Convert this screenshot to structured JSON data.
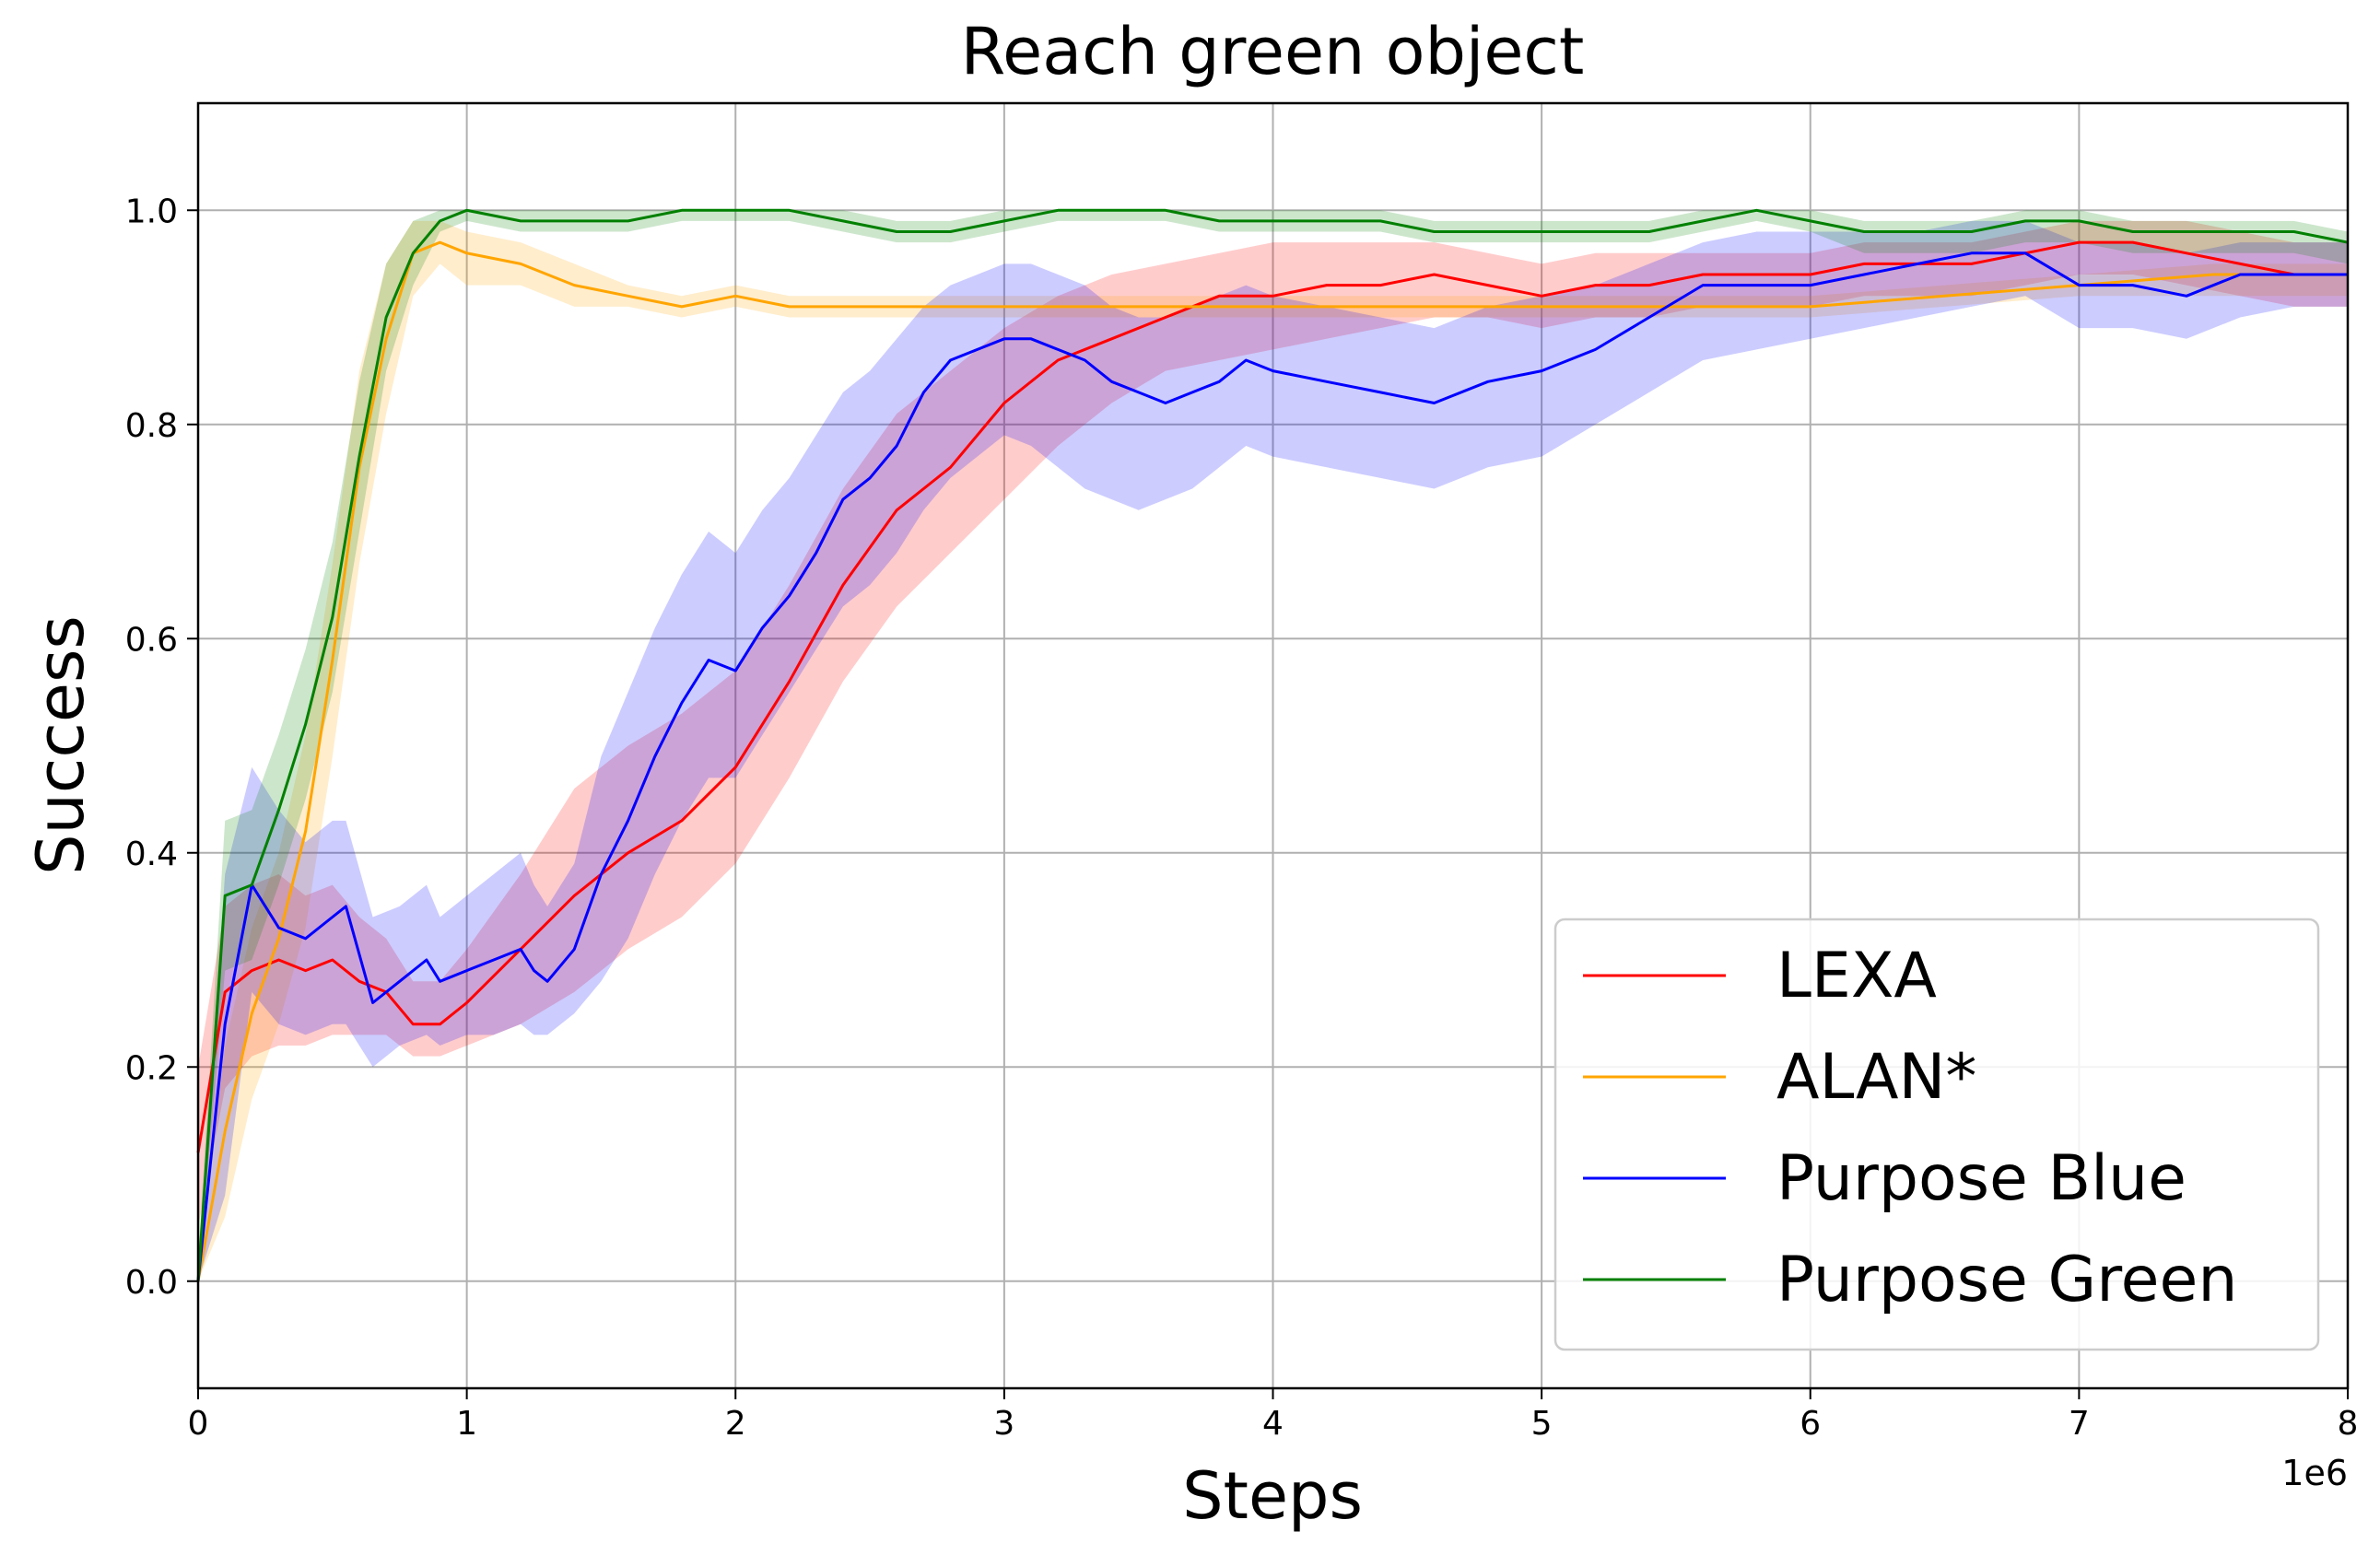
{
  "chart_data": {
    "type": "line",
    "title": "Reach green object",
    "xlabel": "Steps",
    "ylabel": "Success",
    "x_offset_label": "1e6",
    "xlim": [
      0,
      8
    ],
    "ylim": [
      -0.1,
      1.1
    ],
    "x_ticks": [
      0,
      1,
      2,
      3,
      4,
      5,
      6,
      7,
      8
    ],
    "x_tick_labels": [
      "0",
      "1",
      "2",
      "3",
      "4",
      "5",
      "6",
      "7",
      "8"
    ],
    "y_ticks": [
      0.0,
      0.2,
      0.4,
      0.6,
      0.8,
      1.0
    ],
    "y_tick_labels": [
      "0.0",
      "0.2",
      "0.4",
      "0.6",
      "0.8",
      "1.0"
    ],
    "grid": true,
    "legend_position": "lower-right",
    "series": [
      {
        "name": "LEXA",
        "color": "#ff0000",
        "x": [
          0,
          0.1,
          0.2,
          0.3,
          0.4,
          0.5,
          0.6,
          0.7,
          0.8,
          0.9,
          1.0,
          1.2,
          1.4,
          1.6,
          1.8,
          2.0,
          2.2,
          2.4,
          2.6,
          2.8,
          3.0,
          3.2,
          3.4,
          3.6,
          3.8,
          4.0,
          4.2,
          4.4,
          4.6,
          4.8,
          5.0,
          5.2,
          5.4,
          5.6,
          5.8,
          6.0,
          6.2,
          6.4,
          6.6,
          6.8,
          7.0,
          7.2,
          7.4,
          7.6,
          7.8,
          8.0
        ],
        "y": [
          0.12,
          0.27,
          0.29,
          0.3,
          0.29,
          0.3,
          0.28,
          0.27,
          0.24,
          0.24,
          0.26,
          0.31,
          0.36,
          0.4,
          0.43,
          0.48,
          0.56,
          0.65,
          0.72,
          0.76,
          0.82,
          0.86,
          0.88,
          0.9,
          0.92,
          0.92,
          0.93,
          0.93,
          0.94,
          0.93,
          0.92,
          0.93,
          0.93,
          0.94,
          0.94,
          0.94,
          0.95,
          0.95,
          0.95,
          0.96,
          0.97,
          0.97,
          0.96,
          0.95,
          0.94,
          0.94
        ],
        "lower": [
          0.05,
          0.18,
          0.21,
          0.22,
          0.22,
          0.23,
          0.23,
          0.23,
          0.21,
          0.21,
          0.22,
          0.24,
          0.27,
          0.31,
          0.34,
          0.39,
          0.47,
          0.56,
          0.63,
          0.68,
          0.73,
          0.78,
          0.82,
          0.85,
          0.86,
          0.87,
          0.88,
          0.89,
          0.9,
          0.9,
          0.89,
          0.9,
          0.9,
          0.91,
          0.91,
          0.91,
          0.92,
          0.92,
          0.92,
          0.93,
          0.94,
          0.94,
          0.93,
          0.92,
          0.91,
          0.91
        ],
        "upper": [
          0.2,
          0.35,
          0.37,
          0.38,
          0.36,
          0.37,
          0.34,
          0.32,
          0.28,
          0.28,
          0.31,
          0.38,
          0.46,
          0.5,
          0.53,
          0.57,
          0.65,
          0.74,
          0.81,
          0.85,
          0.89,
          0.92,
          0.94,
          0.95,
          0.96,
          0.97,
          0.97,
          0.97,
          0.97,
          0.96,
          0.95,
          0.96,
          0.96,
          0.96,
          0.96,
          0.96,
          0.97,
          0.97,
          0.97,
          0.98,
          0.99,
          0.99,
          0.99,
          0.98,
          0.97,
          0.97
        ]
      },
      {
        "name": "ALAN*",
        "color": "#ffa500",
        "x": [
          0,
          0.1,
          0.2,
          0.3,
          0.4,
          0.5,
          0.6,
          0.7,
          0.8,
          0.9,
          1.0,
          1.2,
          1.4,
          1.6,
          1.8,
          2.0,
          2.2,
          2.4,
          2.6,
          2.8,
          3.0,
          3.5,
          4.0,
          4.5,
          5.0,
          5.5,
          6.0,
          6.5,
          7.0,
          7.5,
          8.0
        ],
        "y": [
          0.0,
          0.14,
          0.25,
          0.32,
          0.42,
          0.58,
          0.76,
          0.88,
          0.96,
          0.97,
          0.96,
          0.95,
          0.93,
          0.92,
          0.91,
          0.92,
          0.91,
          0.91,
          0.91,
          0.91,
          0.91,
          0.91,
          0.91,
          0.91,
          0.91,
          0.91,
          0.91,
          0.92,
          0.93,
          0.94,
          0.94
        ],
        "lower": [
          0.0,
          0.06,
          0.17,
          0.24,
          0.33,
          0.49,
          0.67,
          0.81,
          0.92,
          0.95,
          0.93,
          0.93,
          0.91,
          0.91,
          0.9,
          0.91,
          0.9,
          0.9,
          0.9,
          0.9,
          0.9,
          0.9,
          0.9,
          0.9,
          0.9,
          0.9,
          0.9,
          0.91,
          0.92,
          0.92,
          0.92
        ],
        "upper": [
          0.02,
          0.22,
          0.33,
          0.4,
          0.51,
          0.67,
          0.85,
          0.95,
          0.99,
          0.99,
          0.98,
          0.97,
          0.95,
          0.93,
          0.92,
          0.93,
          0.92,
          0.92,
          0.92,
          0.92,
          0.92,
          0.92,
          0.92,
          0.92,
          0.92,
          0.92,
          0.92,
          0.93,
          0.94,
          0.95,
          0.95
        ]
      },
      {
        "name": "Purpose Blue",
        "color": "#0000ff",
        "x": [
          0,
          0.1,
          0.2,
          0.3,
          0.4,
          0.5,
          0.55,
          0.65,
          0.75,
          0.85,
          0.9,
          1.0,
          1.1,
          1.2,
          1.25,
          1.3,
          1.4,
          1.5,
          1.6,
          1.7,
          1.8,
          1.9,
          2.0,
          2.1,
          2.2,
          2.3,
          2.4,
          2.5,
          2.6,
          2.7,
          2.8,
          2.9,
          3.0,
          3.1,
          3.2,
          3.3,
          3.4,
          3.5,
          3.6,
          3.7,
          3.8,
          3.9,
          4.0,
          4.2,
          4.4,
          4.6,
          4.8,
          5.0,
          5.2,
          5.4,
          5.6,
          5.8,
          6.0,
          6.2,
          6.4,
          6.6,
          6.8,
          7.0,
          7.2,
          7.4,
          7.6,
          7.8,
          8.0
        ],
        "y": [
          0.0,
          0.24,
          0.37,
          0.33,
          0.32,
          0.34,
          0.35,
          0.26,
          0.28,
          0.3,
          0.28,
          0.29,
          0.3,
          0.31,
          0.29,
          0.28,
          0.31,
          0.38,
          0.43,
          0.49,
          0.54,
          0.58,
          0.57,
          0.61,
          0.64,
          0.68,
          0.73,
          0.75,
          0.78,
          0.83,
          0.86,
          0.87,
          0.88,
          0.88,
          0.87,
          0.86,
          0.84,
          0.83,
          0.82,
          0.83,
          0.84,
          0.86,
          0.85,
          0.84,
          0.83,
          0.82,
          0.84,
          0.85,
          0.87,
          0.9,
          0.93,
          0.93,
          0.93,
          0.94,
          0.95,
          0.96,
          0.96,
          0.93,
          0.93,
          0.92,
          0.94,
          0.94,
          0.94
        ],
        "lower": [
          0.0,
          0.08,
          0.27,
          0.24,
          0.23,
          0.24,
          0.24,
          0.2,
          0.22,
          0.23,
          0.22,
          0.23,
          0.23,
          0.24,
          0.23,
          0.23,
          0.25,
          0.28,
          0.32,
          0.38,
          0.43,
          0.47,
          0.47,
          0.51,
          0.55,
          0.59,
          0.63,
          0.65,
          0.68,
          0.72,
          0.75,
          0.77,
          0.79,
          0.78,
          0.76,
          0.74,
          0.73,
          0.72,
          0.73,
          0.74,
          0.76,
          0.78,
          0.77,
          0.76,
          0.75,
          0.74,
          0.76,
          0.77,
          0.8,
          0.83,
          0.86,
          0.87,
          0.88,
          0.89,
          0.9,
          0.91,
          0.92,
          0.89,
          0.89,
          0.88,
          0.9,
          0.91,
          0.91
        ],
        "upper": [
          0.02,
          0.38,
          0.48,
          0.44,
          0.41,
          0.43,
          0.43,
          0.34,
          0.35,
          0.37,
          0.34,
          0.36,
          0.38,
          0.4,
          0.37,
          0.35,
          0.39,
          0.49,
          0.55,
          0.61,
          0.66,
          0.7,
          0.68,
          0.72,
          0.75,
          0.79,
          0.83,
          0.85,
          0.88,
          0.91,
          0.93,
          0.94,
          0.95,
          0.95,
          0.94,
          0.93,
          0.91,
          0.9,
          0.9,
          0.91,
          0.92,
          0.93,
          0.92,
          0.91,
          0.9,
          0.89,
          0.91,
          0.92,
          0.93,
          0.95,
          0.97,
          0.98,
          0.98,
          0.98,
          0.98,
          0.99,
          0.99,
          0.97,
          0.97,
          0.96,
          0.97,
          0.97,
          0.97
        ]
      },
      {
        "name": "Purpose Green",
        "color": "#008000",
        "x": [
          0,
          0.1,
          0.2,
          0.3,
          0.4,
          0.5,
          0.6,
          0.7,
          0.8,
          0.9,
          1.0,
          1.2,
          1.4,
          1.6,
          1.8,
          2.0,
          2.2,
          2.4,
          2.6,
          2.8,
          3.0,
          3.2,
          3.4,
          3.6,
          3.8,
          4.0,
          4.2,
          4.4,
          4.6,
          4.8,
          5.0,
          5.2,
          5.4,
          5.6,
          5.8,
          6.0,
          6.2,
          6.4,
          6.6,
          6.8,
          7.0,
          7.2,
          7.4,
          7.6,
          7.8,
          8.0
        ],
        "y": [
          0.0,
          0.36,
          0.37,
          0.44,
          0.52,
          0.62,
          0.77,
          0.9,
          0.96,
          0.99,
          1.0,
          0.99,
          0.99,
          0.99,
          1.0,
          1.0,
          1.0,
          0.99,
          0.98,
          0.98,
          0.99,
          1.0,
          1.0,
          1.0,
          0.99,
          0.99,
          0.99,
          0.99,
          0.98,
          0.98,
          0.98,
          0.98,
          0.98,
          0.99,
          1.0,
          0.99,
          0.98,
          0.98,
          0.98,
          0.99,
          0.99,
          0.98,
          0.98,
          0.98,
          0.98,
          0.97
        ],
        "lower": [
          0.0,
          0.29,
          0.3,
          0.37,
          0.45,
          0.55,
          0.7,
          0.85,
          0.93,
          0.98,
          0.99,
          0.98,
          0.98,
          0.98,
          0.99,
          0.99,
          0.99,
          0.98,
          0.97,
          0.97,
          0.98,
          0.99,
          0.99,
          0.99,
          0.98,
          0.98,
          0.98,
          0.98,
          0.97,
          0.97,
          0.97,
          0.97,
          0.97,
          0.98,
          0.99,
          0.98,
          0.96,
          0.96,
          0.96,
          0.97,
          0.97,
          0.96,
          0.96,
          0.96,
          0.96,
          0.95
        ],
        "upper": [
          0.02,
          0.43,
          0.44,
          0.51,
          0.59,
          0.69,
          0.84,
          0.95,
          0.99,
          1.0,
          1.0,
          1.0,
          1.0,
          1.0,
          1.0,
          1.0,
          1.0,
          1.0,
          0.99,
          0.99,
          1.0,
          1.0,
          1.0,
          1.0,
          1.0,
          1.0,
          1.0,
          1.0,
          0.99,
          0.99,
          0.99,
          0.99,
          0.99,
          1.0,
          1.0,
          1.0,
          0.99,
          0.99,
          0.99,
          1.0,
          1.0,
          0.99,
          0.99,
          0.99,
          0.99,
          0.98
        ]
      }
    ]
  }
}
